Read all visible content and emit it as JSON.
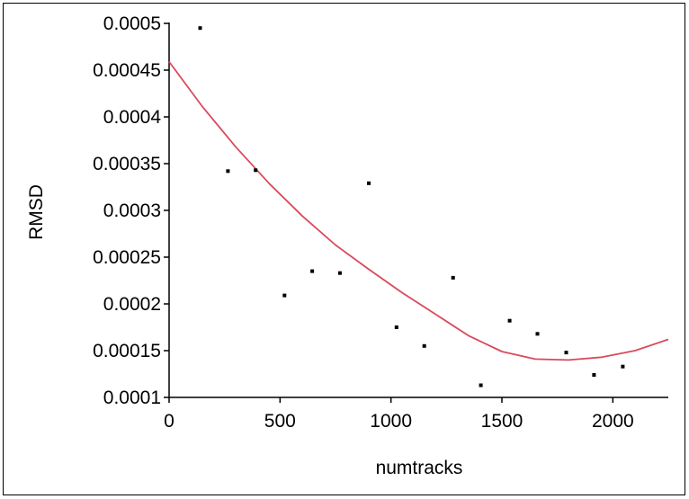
{
  "chart_data": {
    "type": "scatter",
    "xlabel": "numtracks",
    "ylabel": "RMSD",
    "xlim": [
      0,
      2250
    ],
    "ylim": [
      0.0001,
      0.0005
    ],
    "x_ticks": [
      0,
      500,
      1000,
      1500,
      2000
    ],
    "x_tick_labels": [
      "0",
      "500",
      "1000",
      "1500",
      "2000"
    ],
    "y_ticks": [
      0.0001,
      0.00015,
      0.0002,
      0.00025,
      0.0003,
      0.00035,
      0.0004,
      0.00045,
      0.0005
    ],
    "y_tick_labels": [
      "0.0001",
      "0.00015",
      "0.0002",
      "0.00025",
      "0.0003",
      "0.00035",
      "0.0004",
      "0.00045",
      "0.0005"
    ],
    "grid": false,
    "series": [
      {
        "kind": "points",
        "color": "#000000",
        "x": [
          140,
          265,
          390,
          520,
          645,
          770,
          900,
          1025,
          1150,
          1280,
          1405,
          1535,
          1660,
          1790,
          1915,
          2045
        ],
        "y": [
          0.000495,
          0.000342,
          0.000343,
          0.000209,
          0.000235,
          0.000233,
          0.000329,
          0.000175,
          0.000155,
          0.000228,
          0.000113,
          0.000182,
          0.000168,
          0.000148,
          0.000124,
          0.000133
        ]
      },
      {
        "kind": "fit-curve",
        "color": "#d94a5c",
        "x": [
          0,
          150,
          300,
          450,
          600,
          750,
          900,
          1050,
          1200,
          1350,
          1500,
          1650,
          1800,
          1950,
          2100,
          2250
        ],
        "y": [
          0.000459,
          0.000411,
          0.000368,
          0.000329,
          0.000294,
          0.000263,
          0.000237,
          0.000212,
          0.000189,
          0.000166,
          0.000149,
          0.000141,
          0.00014,
          0.000143,
          0.00015,
          0.000162
        ]
      }
    ]
  }
}
